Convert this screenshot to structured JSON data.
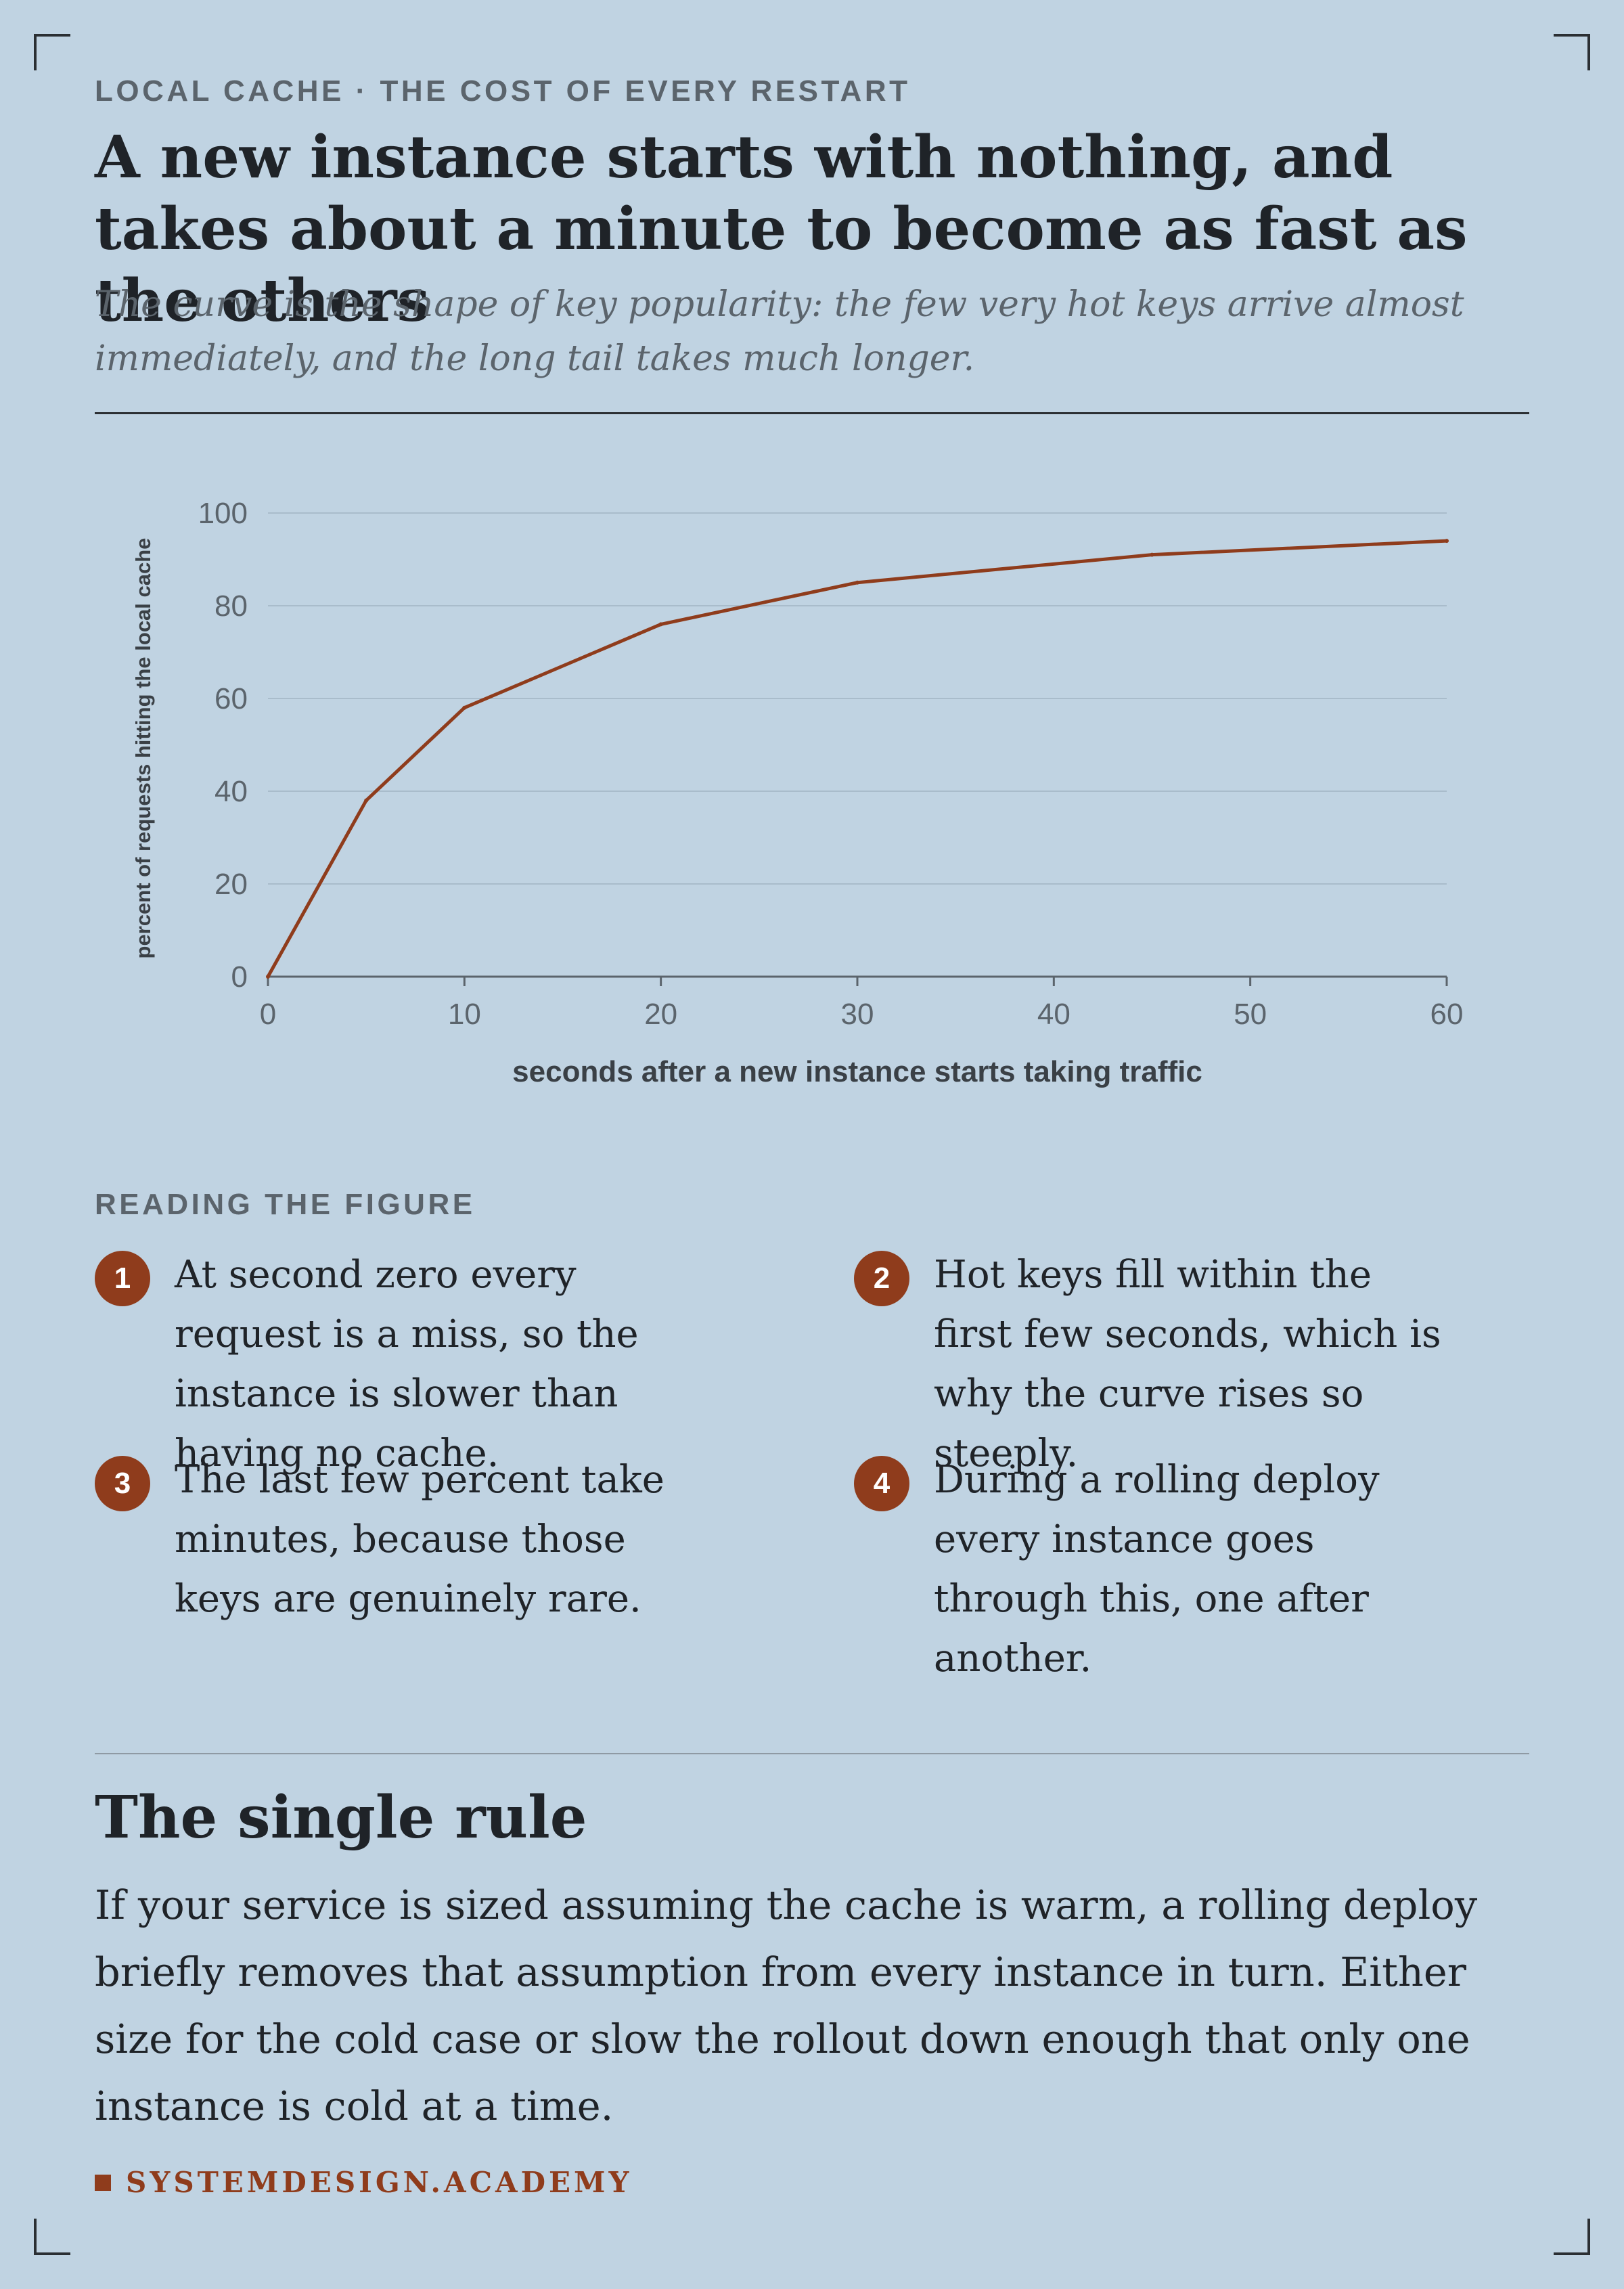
{
  "header": {
    "kicker": "LOCAL CACHE · THE COST OF EVERY RESTART",
    "title": "A new instance starts with nothing, and takes about a minute to become as fast as the others",
    "subtitle": "The curve is the shape of key popularity: the few very hot keys arrive almost immediately, and the long tail takes much longer."
  },
  "chart_data": {
    "type": "line",
    "x": [
      0,
      5,
      10,
      20,
      30,
      45,
      60
    ],
    "series": [
      {
        "values": [
          0,
          38,
          58,
          76,
          85,
          91,
          94
        ]
      }
    ],
    "xlabel": "seconds after a new instance starts taking traffic",
    "ylabel": "percent of requests hitting the local cache",
    "xlim": [
      0,
      60
    ],
    "ylim": [
      0,
      100
    ],
    "xticks": [
      0,
      10,
      20,
      30,
      40,
      50,
      60
    ],
    "yticks": [
      0,
      20,
      40,
      60,
      80,
      100
    ],
    "grid": "horizontal",
    "line_color": "#8f3c1c",
    "grid_color": "#a9bccb",
    "axis_color": "#5b646c"
  },
  "reading": {
    "label": "READING THE FIGURE",
    "notes": [
      {
        "num": "1",
        "text": "At second zero every request is a miss, so the instance is slower than having no cache."
      },
      {
        "num": "2",
        "text": "Hot keys fill within the first few seconds, which is why the curve rises so steeply."
      },
      {
        "num": "3",
        "text": "The last few percent take minutes, because those keys are genuinely rare."
      },
      {
        "num": "4",
        "text": "During a rolling deploy every instance goes through this, one after another."
      }
    ]
  },
  "rule": {
    "heading": "The single rule",
    "body": "If your service is sized assuming the cache is warm, a rolling deploy briefly removes that assumption from every instance in turn. Either size for the cold case or slow the rollout down enough that only one instance is cold at a time."
  },
  "footer": {
    "brand": "SYSTEMDESIGN.ACADEMY",
    "accent_color": "#8f3c1c"
  }
}
